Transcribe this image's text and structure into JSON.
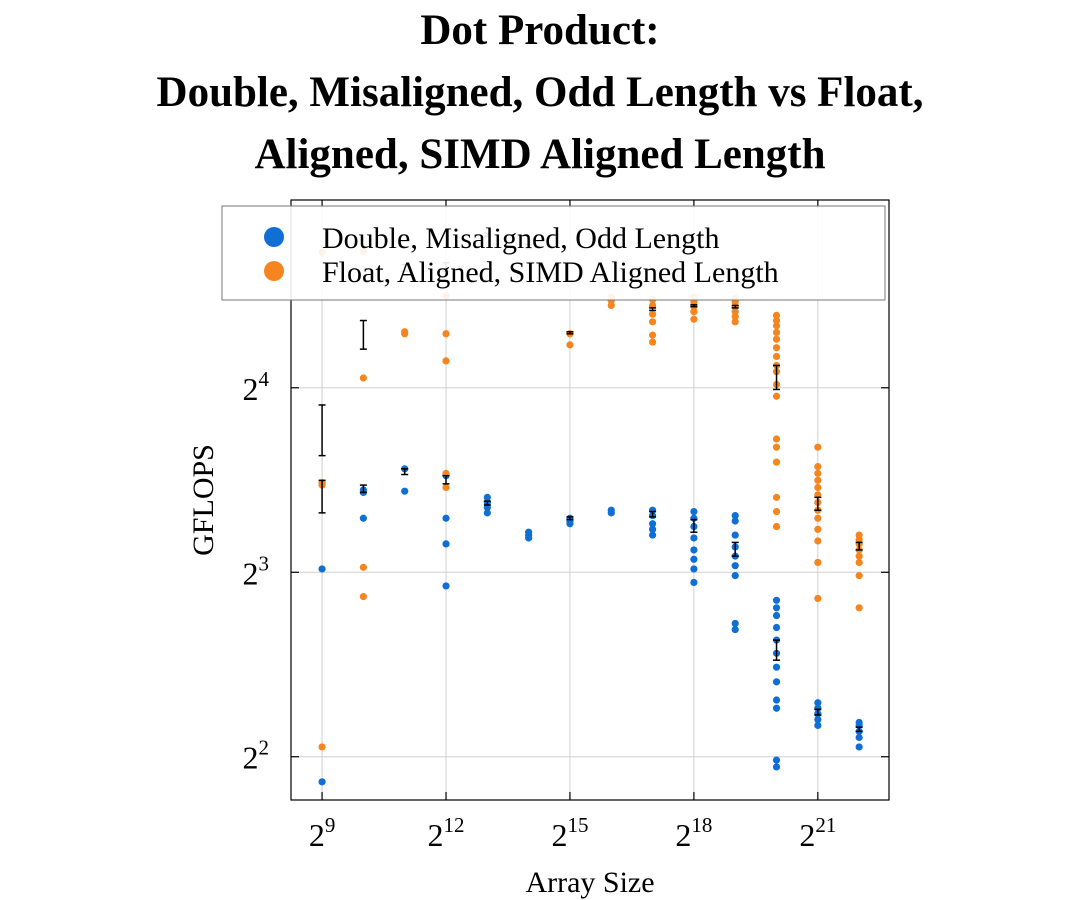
{
  "chart_data": {
    "type": "scatter",
    "title": [
      "Dot Product:",
      "Double, Misaligned, Odd Length vs Float,",
      "Aligned, SIMD Aligned Length"
    ],
    "xlabel": "Array Size",
    "ylabel": "GFLOPS",
    "x_scale": "log2",
    "y_scale": "log2",
    "xlim": [
      304,
      6920000
    ],
    "ylim": [
      3.4,
      32.4
    ],
    "x_ticks": [
      {
        "value": 512,
        "base": "2",
        "exp": "9"
      },
      {
        "value": 4096,
        "base": "2",
        "exp": "12"
      },
      {
        "value": 32768,
        "base": "2",
        "exp": "15"
      },
      {
        "value": 262144,
        "base": "2",
        "exp": "18"
      },
      {
        "value": 2097152,
        "base": "2",
        "exp": "21"
      }
    ],
    "y_ticks": [
      {
        "value": 4,
        "base": "2",
        "exp": "2"
      },
      {
        "value": 8,
        "base": "2",
        "exp": "3"
      },
      {
        "value": 16,
        "base": "2",
        "exp": "4"
      }
    ],
    "grid": true,
    "legend_position": "top",
    "series": [
      {
        "name": "Double, Misaligned, Odd Length",
        "color": "#0f6fd4",
        "points": [
          [
            512,
            3.64
          ],
          [
            512,
            8.1
          ],
          [
            1024,
            9.8
          ],
          [
            1024,
            10.8
          ],
          [
            1024,
            10.9
          ],
          [
            2048,
            10.85
          ],
          [
            2048,
            11.8
          ],
          [
            4096,
            7.6
          ],
          [
            4096,
            8.9
          ],
          [
            4096,
            9.8
          ],
          [
            4096,
            11.5
          ],
          [
            8192,
            10.0
          ],
          [
            8192,
            10.2
          ],
          [
            8192,
            10.4
          ],
          [
            8192,
            10.6
          ],
          [
            16384,
            9.1
          ],
          [
            16384,
            9.2
          ],
          [
            16384,
            9.3
          ],
          [
            32768,
            9.6
          ],
          [
            32768,
            9.7
          ],
          [
            32768,
            9.8
          ],
          [
            65536,
            10.0
          ],
          [
            65536,
            10.1
          ],
          [
            131072,
            9.2
          ],
          [
            131072,
            9.4
          ],
          [
            131072,
            9.6
          ],
          [
            131072,
            9.9
          ],
          [
            131072,
            10.1
          ],
          [
            262144,
            7.7
          ],
          [
            262144,
            8.1
          ],
          [
            262144,
            8.4
          ],
          [
            262144,
            8.7
          ],
          [
            262144,
            9.1
          ],
          [
            262144,
            9.5
          ],
          [
            262144,
            9.8
          ],
          [
            262144,
            10.05
          ],
          [
            524288,
            6.45
          ],
          [
            524288,
            6.6
          ],
          [
            524288,
            7.9
          ],
          [
            524288,
            8.2
          ],
          [
            524288,
            8.5
          ],
          [
            524288,
            8.8
          ],
          [
            524288,
            9.2
          ],
          [
            524288,
            9.7
          ],
          [
            524288,
            9.9
          ],
          [
            1048576,
            3.85
          ],
          [
            1048576,
            3.95
          ],
          [
            1048576,
            4.8
          ],
          [
            1048576,
            4.95
          ],
          [
            1048576,
            5.3
          ],
          [
            1048576,
            5.6
          ],
          [
            1048576,
            5.9
          ],
          [
            1048576,
            6.2
          ],
          [
            1048576,
            6.5
          ],
          [
            1048576,
            6.8
          ],
          [
            1048576,
            7.0
          ],
          [
            1048576,
            7.2
          ],
          [
            2097152,
            4.5
          ],
          [
            2097152,
            4.6
          ],
          [
            2097152,
            4.7
          ],
          [
            2097152,
            4.8
          ],
          [
            2097152,
            4.9
          ],
          [
            4194304,
            4.15
          ],
          [
            4194304,
            4.3
          ],
          [
            4194304,
            4.4
          ],
          [
            4194304,
            4.5
          ],
          [
            4194304,
            4.55
          ]
        ]
      },
      {
        "name": "Float, Aligned, SIMD Aligned Length",
        "color": "#f5851f",
        "points": [
          [
            512,
            4.15
          ],
          [
            512,
            11.1
          ],
          [
            512,
            11.2
          ],
          [
            512,
            26.6
          ],
          [
            1024,
            7.3
          ],
          [
            1024,
            8.15
          ],
          [
            1024,
            16.6
          ],
          [
            1024,
            26.7
          ],
          [
            2048,
            19.6
          ],
          [
            2048,
            19.75
          ],
          [
            4096,
            17.7
          ],
          [
            4096,
            19.6
          ],
          [
            4096,
            22.6
          ],
          [
            4096,
            11.0
          ],
          [
            4096,
            11.6
          ],
          [
            32768,
            18.8
          ],
          [
            32768,
            19.6
          ],
          [
            65536,
            21.8
          ],
          [
            65536,
            22.2
          ],
          [
            65536,
            22.5
          ],
          [
            131072,
            19.0
          ],
          [
            131072,
            19.5
          ],
          [
            131072,
            20.5
          ],
          [
            131072,
            21.1
          ],
          [
            131072,
            21.8
          ],
          [
            131072,
            22.3
          ],
          [
            262144,
            20.7
          ],
          [
            262144,
            21.3
          ],
          [
            262144,
            21.7
          ],
          [
            262144,
            22.1
          ],
          [
            262144,
            22.5
          ],
          [
            524288,
            20.5
          ],
          [
            524288,
            20.9
          ],
          [
            524288,
            21.3
          ],
          [
            524288,
            21.7
          ],
          [
            524288,
            22.1
          ],
          [
            524288,
            22.4
          ],
          [
            1048576,
            9.5
          ],
          [
            1048576,
            10.05
          ],
          [
            1048576,
            10.6
          ],
          [
            1048576,
            12.1
          ],
          [
            1048576,
            12.8
          ],
          [
            1048576,
            13.2
          ],
          [
            1048576,
            15.5
          ],
          [
            1048576,
            16.2
          ],
          [
            1048576,
            17.0
          ],
          [
            1048576,
            17.4
          ],
          [
            1048576,
            18.0
          ],
          [
            1048576,
            18.6
          ],
          [
            1048576,
            19.2
          ],
          [
            1048576,
            19.7
          ],
          [
            1048576,
            20.2
          ],
          [
            1048576,
            20.6
          ],
          [
            1048576,
            21.0
          ],
          [
            2097152,
            7.25
          ],
          [
            2097152,
            8.3
          ],
          [
            2097152,
            9.0
          ],
          [
            2097152,
            9.4
          ],
          [
            2097152,
            9.8
          ],
          [
            2097152,
            10.1
          ],
          [
            2097152,
            10.4
          ],
          [
            2097152,
            10.7
          ],
          [
            2097152,
            11.0
          ],
          [
            2097152,
            11.3
          ],
          [
            2097152,
            11.6
          ],
          [
            2097152,
            11.9
          ],
          [
            2097152,
            12.8
          ],
          [
            4194304,
            7.0
          ],
          [
            4194304,
            7.9
          ],
          [
            4194304,
            8.3
          ],
          [
            4194304,
            8.5
          ],
          [
            4194304,
            8.7
          ],
          [
            4194304,
            8.9
          ],
          [
            4194304,
            9.05
          ],
          [
            4194304,
            9.2
          ]
        ]
      }
    ],
    "error_bars": [
      {
        "x": 512,
        "low": 10.0,
        "high": 11.3,
        "color": "#000000"
      },
      {
        "x": 512,
        "low": 12.4,
        "high": 15.0,
        "color": "#000000"
      },
      {
        "x": 1024,
        "low": 10.8,
        "high": 11.1,
        "color": "#000000"
      },
      {
        "x": 1024,
        "low": 18.5,
        "high": 20.6,
        "color": "#000000"
      },
      {
        "x": 2048,
        "low": 11.55,
        "high": 11.8,
        "color": "#000000"
      },
      {
        "x": 2048,
        "low": 24.8,
        "high": 25.4,
        "color": "#000000"
      },
      {
        "x": 4096,
        "low": 11.15,
        "high": 11.5,
        "color": "#000000"
      },
      {
        "x": 4096,
        "low": 24.8,
        "high": 25.6,
        "color": "#000000"
      },
      {
        "x": 8192,
        "low": 10.3,
        "high": 10.45,
        "color": "#000000"
      },
      {
        "x": 8192,
        "low": 28.3,
        "high": 28.6,
        "color": "#000000"
      },
      {
        "x": 16384,
        "low": 27.0,
        "high": 27.4,
        "color": "#000000"
      },
      {
        "x": 32768,
        "low": 9.75,
        "high": 9.85,
        "color": "#000000"
      },
      {
        "x": 32768,
        "low": 19.6,
        "high": 19.75,
        "color": "#000000"
      },
      {
        "x": 131072,
        "low": 9.85,
        "high": 10.05,
        "color": "#000000"
      },
      {
        "x": 131072,
        "low": 21.4,
        "high": 21.6,
        "color": "#000000"
      },
      {
        "x": 262144,
        "low": 9.3,
        "high": 9.75,
        "color": "#000000"
      },
      {
        "x": 262144,
        "low": 21.7,
        "high": 21.85,
        "color": "#000000"
      },
      {
        "x": 524288,
        "low": 8.5,
        "high": 8.95,
        "color": "#000000"
      },
      {
        "x": 524288,
        "low": 21.6,
        "high": 21.8,
        "color": "#000000"
      },
      {
        "x": 1048576,
        "low": 5.75,
        "high": 6.2,
        "color": "#000000"
      },
      {
        "x": 1048576,
        "low": 15.9,
        "high": 17.4,
        "color": "#000000"
      },
      {
        "x": 2097152,
        "low": 4.68,
        "high": 4.78,
        "color": "#000000"
      },
      {
        "x": 2097152,
        "low": 10.1,
        "high": 10.6,
        "color": "#000000"
      },
      {
        "x": 4194304,
        "low": 4.4,
        "high": 4.47,
        "color": "#000000"
      },
      {
        "x": 4194304,
        "low": 8.7,
        "high": 8.95,
        "color": "#000000"
      }
    ]
  }
}
